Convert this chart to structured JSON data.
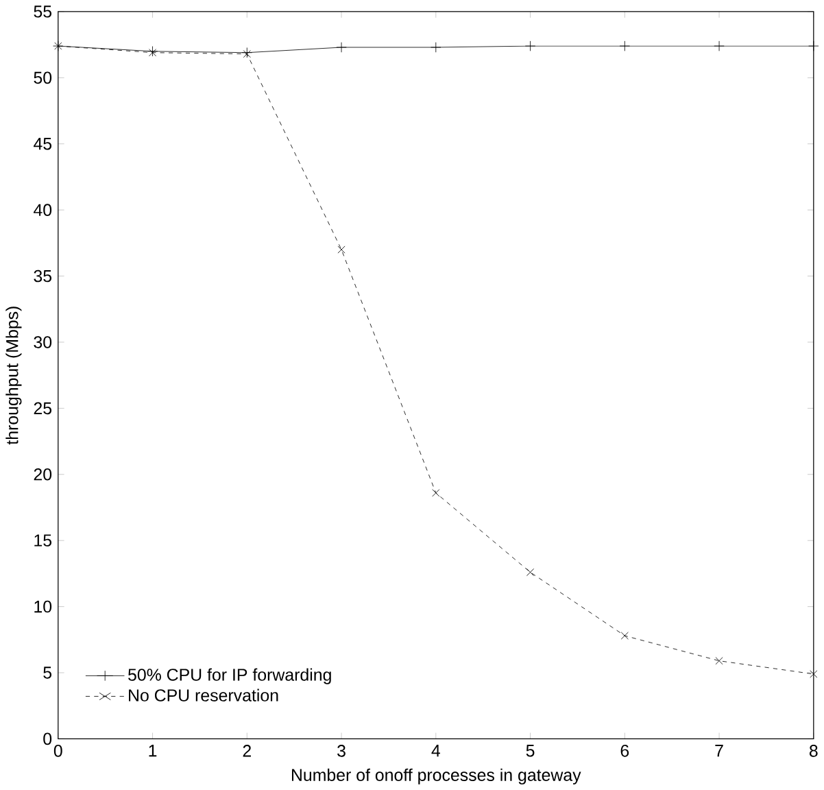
{
  "chart_data": {
    "type": "line",
    "xlabel": "Number of onoff processes in gateway",
    "ylabel": "throughput (Mbps)",
    "x": [
      0,
      1,
      2,
      3,
      4,
      5,
      6,
      7,
      8
    ],
    "series": [
      {
        "name": "50% CPU for IP forwarding",
        "color": "#000000",
        "marker": "plus",
        "line_style": "solid",
        "values": [
          52.4,
          52.0,
          51.9,
          52.3,
          52.3,
          52.4,
          52.4,
          52.4,
          52.4
        ]
      },
      {
        "name": "No CPU reservation",
        "color": "#000000",
        "marker": "cross",
        "line_style": "dashed",
        "values": [
          52.4,
          51.9,
          51.8,
          37.0,
          18.6,
          12.6,
          7.8,
          5.9,
          4.9
        ]
      }
    ],
    "xlim": [
      0,
      8
    ],
    "ylim": [
      0,
      55
    ],
    "xticks": [
      0,
      1,
      2,
      3,
      4,
      5,
      6,
      7,
      8
    ],
    "yticks": [
      0,
      5,
      10,
      15,
      20,
      25,
      30,
      35,
      40,
      45,
      50,
      55
    ],
    "grid": false,
    "legend": "bottom left"
  }
}
